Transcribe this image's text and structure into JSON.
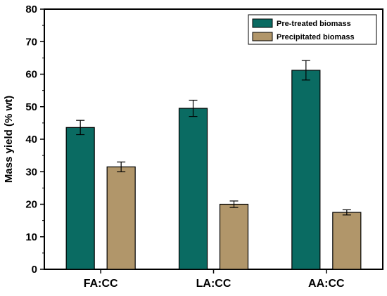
{
  "chart_data": {
    "type": "bar",
    "title": "",
    "xlabel": "",
    "ylabel": "Mass yield (% wt)",
    "categories": [
      "FA:CC",
      "LA:CC",
      "AA:CC"
    ],
    "ylim": [
      0,
      80
    ],
    "yticks": [
      0,
      10,
      20,
      30,
      40,
      50,
      60,
      70,
      80
    ],
    "grid": false,
    "legend_position": "top-right",
    "series": [
      {
        "name": "Pre-treated biomass",
        "color": "#0a6b62",
        "values": [
          43.6,
          49.5,
          61.2
        ],
        "errors": [
          2.2,
          2.5,
          3.0
        ]
      },
      {
        "name": "Precipitated biomass",
        "color": "#b1966a",
        "values": [
          31.5,
          20.0,
          17.5
        ],
        "errors": [
          1.5,
          1.0,
          0.8
        ]
      }
    ]
  }
}
